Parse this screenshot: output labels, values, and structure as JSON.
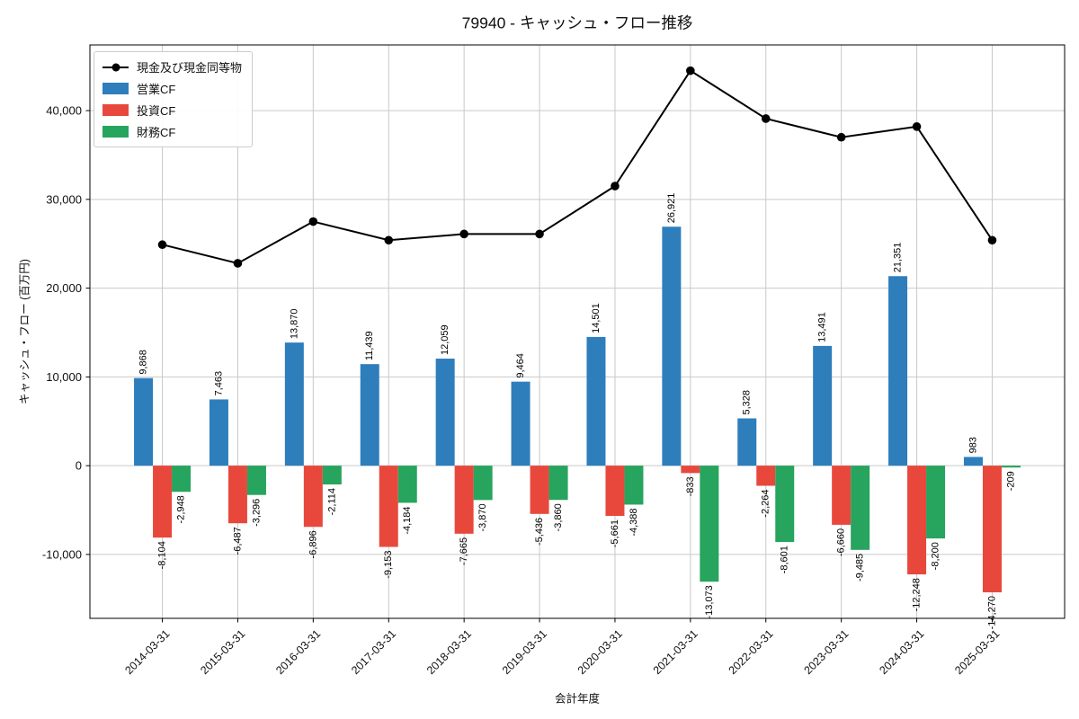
{
  "chart_data": {
    "type": "bar",
    "subtype": "grouped bars with overlaid line",
    "title": "79940 - キャッシュ・フロー推移",
    "xlabel": "会計年度",
    "ylabel": "キャッシュ・フロー (百万円)",
    "categories": [
      "2014-03-31",
      "2015-03-31",
      "2016-03-31",
      "2017-03-31",
      "2018-03-31",
      "2019-03-31",
      "2020-03-31",
      "2021-03-31",
      "2022-03-31",
      "2023-03-31",
      "2024-03-31",
      "2025-03-31"
    ],
    "series": [
      {
        "key": "cash_equivalents",
        "name": "現金及び現金同等物",
        "type": "line",
        "color": "#000000",
        "values_estimated": true,
        "values": [
          24900,
          22800,
          27500,
          25400,
          26100,
          26100,
          31500,
          44500,
          39100,
          37000,
          38200,
          25400
        ]
      },
      {
        "key": "operating_cf",
        "name": "営業CF",
        "type": "bar",
        "color": "#2e7ebc",
        "values": [
          9868,
          7463,
          13870,
          11439,
          12059,
          9464,
          14501,
          26921,
          5328,
          13491,
          21351,
          983
        ]
      },
      {
        "key": "investing_cf",
        "name": "投資CF",
        "type": "bar",
        "color": "#e8483c",
        "values": [
          -8104,
          -6487,
          -6896,
          -9153,
          -7665,
          -5436,
          -5661,
          -833,
          -2264,
          -6660,
          -12248,
          -14270
        ]
      },
      {
        "key": "financing_cf",
        "name": "財務CF",
        "type": "bar",
        "color": "#27a45e",
        "values": [
          -2948,
          -3296,
          -2114,
          -4184,
          -3870,
          -3860,
          -4388,
          -13073,
          -8601,
          -9485,
          -8200,
          -209
        ]
      }
    ],
    "ylim": [
      -17200,
      47400
    ],
    "yticks": [
      -10000,
      0,
      10000,
      20000,
      30000,
      40000
    ],
    "grid": true,
    "x_tick_rotation": 45,
    "bar_value_labels": true,
    "legend_position": "upper left"
  }
}
